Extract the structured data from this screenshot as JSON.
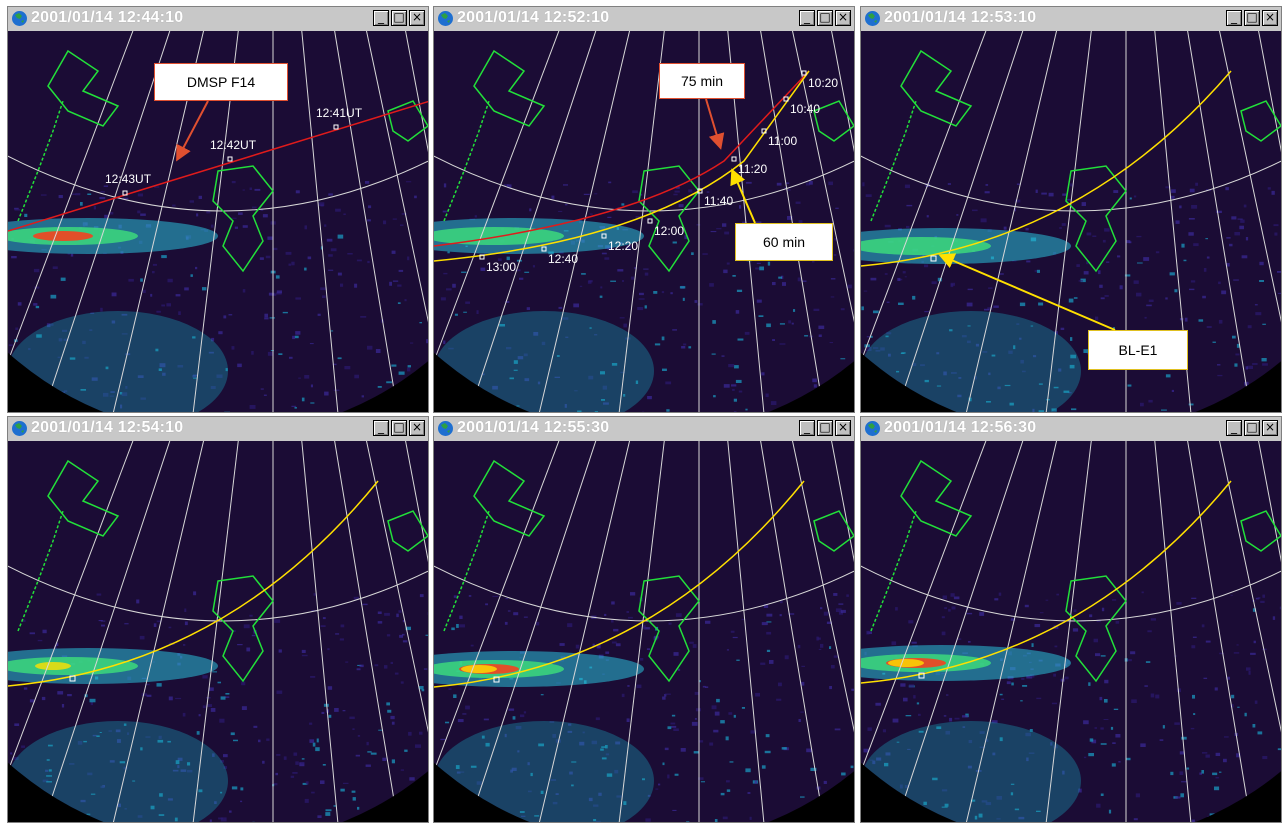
{
  "windows": [
    {
      "title": "2001/01/14 12:44:10"
    },
    {
      "title": "2001/01/14 12:52:10"
    },
    {
      "title": "2001/01/14 12:53:10"
    },
    {
      "title": "2001/01/14 12:54:10"
    },
    {
      "title": "2001/01/14 12:55:30"
    },
    {
      "title": "2001/01/14 12:56:30"
    }
  ],
  "controls": {
    "minimize": "_",
    "maximize": "□",
    "close": "×"
  },
  "callouts": {
    "dmsp": "DMSP F14",
    "min75": "75 min",
    "min60": "60 min",
    "ble1": "BL-E1"
  },
  "colors": {
    "track_red": "#e01b1b",
    "track_yellow": "#ffe000",
    "coastline": "#22e03a",
    "grid": "#d8d8d8",
    "sky": "#1b0c35"
  },
  "dmsp_times": [
    "12:41UT",
    "12:42UT",
    "12:43UT"
  ],
  "track_times": [
    "10:20",
    "10:40",
    "11:00",
    "11:20",
    "11:40",
    "12:00",
    "12:20",
    "12:40",
    "13:00"
  ],
  "icons": {
    "title": "globe-icon"
  }
}
